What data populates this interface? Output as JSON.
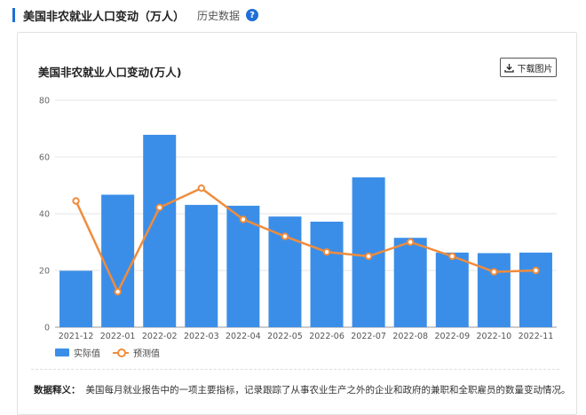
{
  "header": {
    "title": "美国非农就业人口变动（万人）",
    "history_link": "历史数据",
    "help_glyph": "?"
  },
  "chart_card": {
    "title": "美国非农就业人口变动(万人)",
    "download_label": "下载图片",
    "download_icon": "download-icon"
  },
  "definition": {
    "label": "数据释义：",
    "text": "美国每月就业报告中的一项主要指标，记录跟踪了从事农业生产之外的企业和政府的兼职和全职雇员的数量变动情况。"
  },
  "colors": {
    "accent": "#1f6fd6",
    "bar": "#3b8ee8",
    "line": "#f08c3c"
  },
  "chart_data": {
    "type": "bar",
    "categories": [
      "2021-12",
      "2022-01",
      "2022-02",
      "2022-03",
      "2022-04",
      "2022-05",
      "2022-06",
      "2022-07",
      "2022-08",
      "2022-09",
      "2022-10",
      "2022-11"
    ],
    "series": [
      {
        "name": "实际值",
        "type": "bar",
        "values": [
          19.9,
          46.7,
          67.8,
          43.1,
          42.8,
          39.0,
          37.2,
          52.8,
          31.5,
          26.3,
          26.1,
          26.3
        ]
      },
      {
        "name": "预测值",
        "type": "line",
        "values": [
          44.5,
          12.5,
          42.2,
          49.0,
          38.0,
          32.0,
          26.5,
          25.0,
          30.0,
          25.0,
          19.5,
          20.0
        ]
      }
    ],
    "yticks": [
      0,
      20,
      40,
      60,
      80
    ],
    "ylim": [
      0,
      80
    ],
    "grid": true,
    "legend_position": "bottom-left"
  }
}
